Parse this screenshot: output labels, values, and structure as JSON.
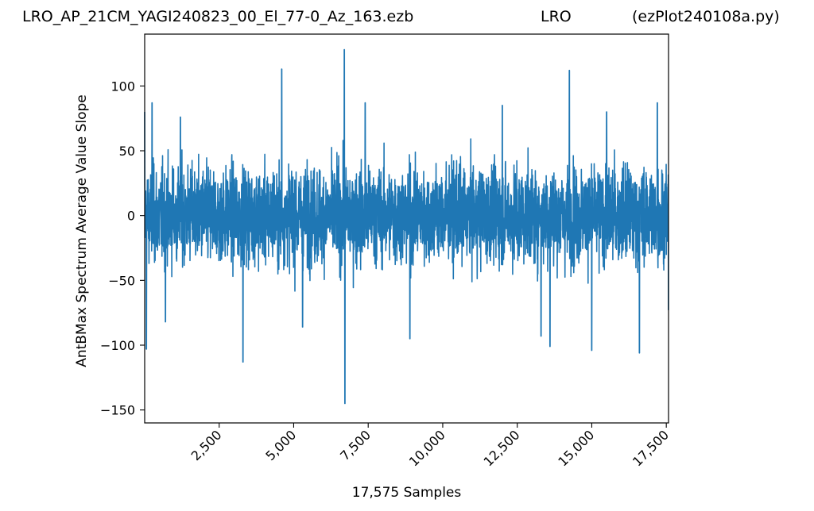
{
  "title_parts": {
    "left": "LRO_AP_21CM_YAGI240823_00_El_77-0_Az_163.ezb",
    "middle": "LRO",
    "right": "(ezPlot240108a.py)"
  },
  "colors": {
    "series": "#1f77b4",
    "axes": "#000000",
    "background": "#ffffff"
  },
  "chart_data": {
    "type": "line",
    "xlabel": "17,575 Samples",
    "ylabel": "AntBMax Spectrum Average Value Slope",
    "xlim": [
      1,
      17575
    ],
    "ylim": [
      -160,
      140
    ],
    "x_ticks": [
      2500,
      5000,
      7500,
      10000,
      12500,
      15000,
      17500
    ],
    "x_tick_labels": [
      "2,500",
      "5,000",
      "7,500",
      "10,000",
      "12,500",
      "15,000",
      "17,500"
    ],
    "y_ticks": [
      -150,
      -100,
      -50,
      0,
      50,
      100
    ],
    "y_tick_labels": [
      "−150",
      "−100",
      "−50",
      "0",
      "50",
      "100"
    ],
    "grid": false,
    "legend": "none",
    "series": [
      {
        "n_points": 17575,
        "typical_range": [
          -55,
          55
        ],
        "x": [
          1,
          60,
          250,
          700,
          1200,
          3300,
          4600,
          5300,
          6700,
          6720,
          7400,
          8900,
          12000,
          13300,
          13600,
          14250,
          15000,
          15500,
          16600,
          17200,
          17575
        ],
        "values": [
          80,
          -103,
          87,
          -82,
          76,
          -113,
          113,
          -86,
          128,
          -145,
          87,
          -95,
          85,
          -93,
          -101,
          112,
          -104,
          80,
          -106,
          87,
          -73
        ]
      }
    ]
  }
}
